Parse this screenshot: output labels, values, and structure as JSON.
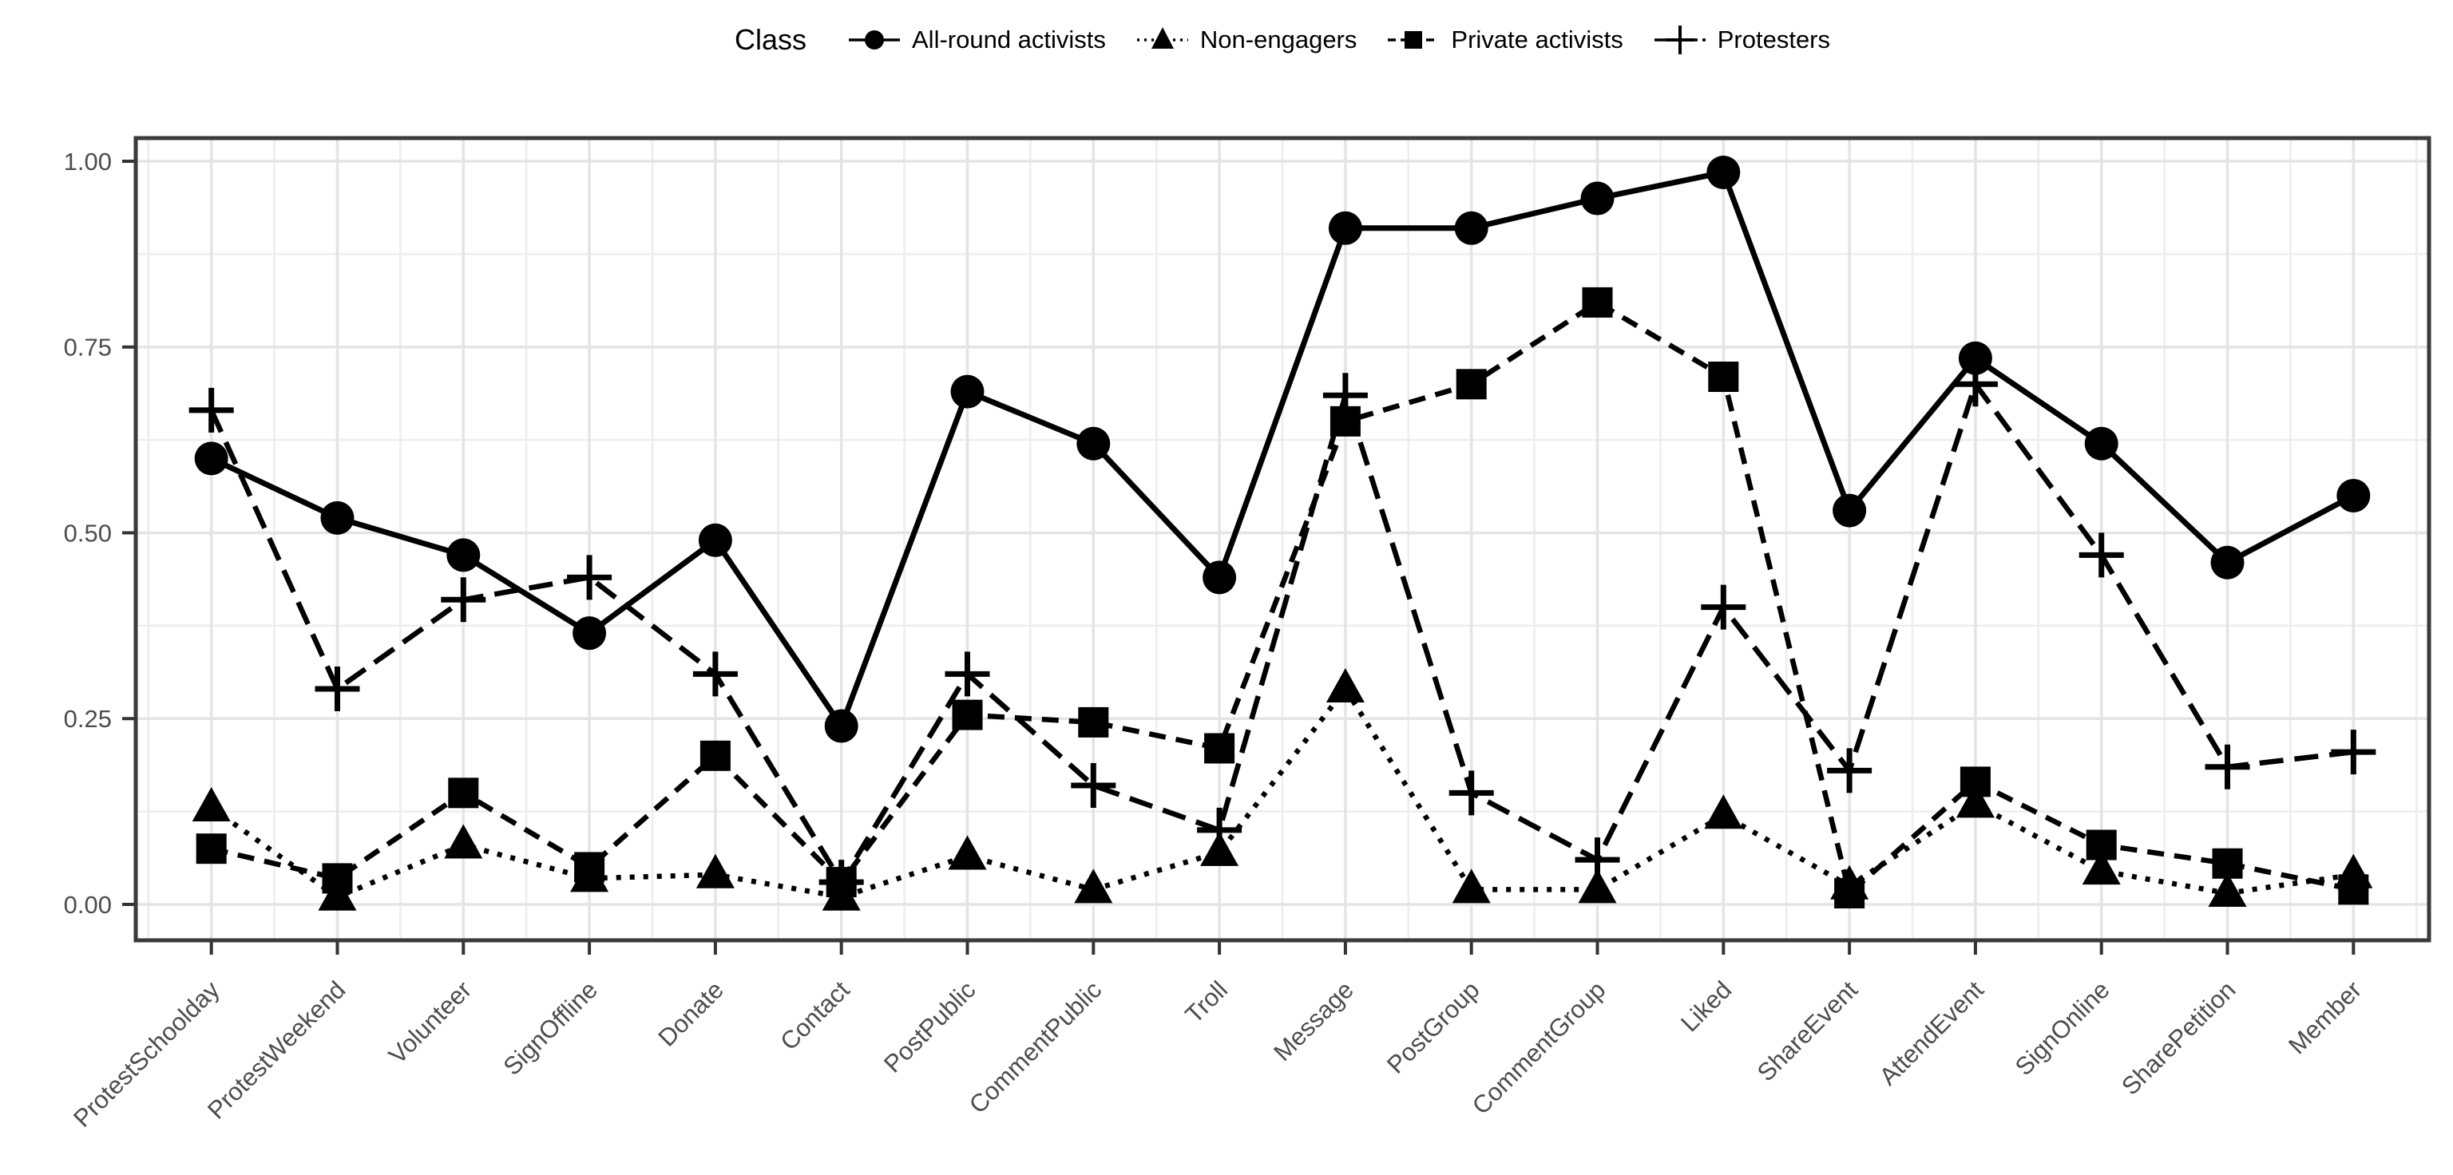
{
  "legend": {
    "title": "Class"
  },
  "chart_data": {
    "type": "line",
    "title": "",
    "xlabel": "",
    "ylabel": "",
    "ylim": [
      0,
      1
    ],
    "yticks": [
      "0.00",
      "0.25",
      "0.50",
      "0.75",
      "1.00"
    ],
    "ytick_values": [
      0,
      0.25,
      0.5,
      0.75,
      1.0
    ],
    "grid": "major-and-minor",
    "legend_position": "top",
    "categories": [
      "ProtestSchoolday",
      "ProtestWeekend",
      "Volunteer",
      "SignOffline",
      "Donate",
      "Contact",
      "PostPublic",
      "CommentPublic",
      "Troll",
      "Message",
      "PostGroup",
      "CommentGroup",
      "Liked",
      "ShareEvent",
      "AttendEvent",
      "SignOnline",
      "SharePetition",
      "Member"
    ],
    "series": [
      {
        "name": "All-round activists",
        "marker": "circle",
        "line": "solid",
        "values": [
          0.6,
          0.52,
          0.47,
          0.365,
          0.49,
          0.24,
          0.69,
          0.62,
          0.44,
          0.91,
          0.91,
          0.95,
          0.985,
          0.53,
          0.735,
          0.62,
          0.46,
          0.55
        ]
      },
      {
        "name": "Non-engagers",
        "marker": "triangle",
        "line": "dotted",
        "values": [
          0.13,
          0.01,
          0.08,
          0.035,
          0.04,
          0.01,
          0.065,
          0.02,
          0.07,
          0.29,
          0.02,
          0.02,
          0.12,
          0.025,
          0.135,
          0.045,
          0.015,
          0.04
        ]
      },
      {
        "name": "Private activists",
        "marker": "square",
        "line": "dashed",
        "values": [
          0.075,
          0.035,
          0.15,
          0.05,
          0.2,
          0.03,
          0.255,
          0.245,
          0.21,
          0.65,
          0.7,
          0.81,
          0.71,
          0.015,
          0.165,
          0.08,
          0.055,
          0.02
        ]
      },
      {
        "name": "Protesters",
        "marker": "plus",
        "line": "longdash",
        "values": [
          0.665,
          0.29,
          0.41,
          0.44,
          0.31,
          0.03,
          0.31,
          0.16,
          0.1,
          0.685,
          0.15,
          0.06,
          0.4,
          0.18,
          0.7,
          0.47,
          0.185,
          0.205
        ]
      }
    ],
    "colors": {
      "data": "#000000",
      "grid_major": "#e4e4e4",
      "grid_minor": "#ededed",
      "panel_border": "#3a3a3a",
      "axis_text": "#4d4d4d",
      "tick_mark": "#333333",
      "background": "#ffffff"
    }
  }
}
